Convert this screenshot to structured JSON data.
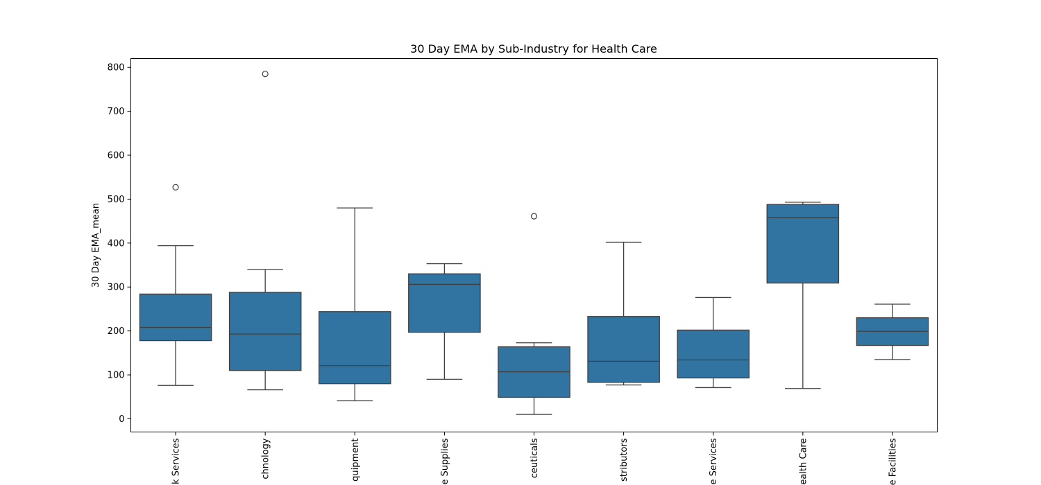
{
  "chart_data": {
    "type": "box",
    "title": "30 Day EMA by Sub-Industry for Health Care",
    "xlabel": "",
    "ylabel": "30 Day EMA_mean",
    "ylim": [
      -30,
      820
    ],
    "yticks": [
      0,
      100,
      200,
      300,
      400,
      500,
      600,
      700,
      800
    ],
    "grid": false,
    "box_color": "#3274a1",
    "categories": [
      "Health Care Services",
      "Health Care Technology",
      "Health Care Equipment",
      "Health Care Supplies",
      "Pharmaceuticals",
      "Health Care Distributors",
      "Managed Health Care Services",
      "Managed Health Care",
      "Health Care Facilities"
    ],
    "category_labels": [
      "k Services",
      "chnology",
      "quipment",
      "e Supplies",
      "ceuticals",
      "stributors",
      "e Services",
      "ealth Care",
      "e Facilities"
    ],
    "boxes": [
      {
        "whisker_low": 76,
        "q1": 178,
        "median": 208,
        "q3": 284,
        "whisker_high": 394,
        "outliers": [
          527
        ]
      },
      {
        "whisker_low": 66,
        "q1": 110,
        "median": 193,
        "q3": 288,
        "whisker_high": 340,
        "outliers": [
          785
        ]
      },
      {
        "whisker_low": 41,
        "q1": 80,
        "median": 121,
        "q3": 244,
        "whisker_high": 480,
        "outliers": []
      },
      {
        "whisker_low": 90,
        "q1": 197,
        "median": 306,
        "q3": 330,
        "whisker_high": 353,
        "outliers": []
      },
      {
        "whisker_low": 10,
        "q1": 49,
        "median": 107,
        "q3": 164,
        "whisker_high": 173,
        "outliers": [
          461
        ]
      },
      {
        "whisker_low": 77,
        "q1": 83,
        "median": 131,
        "q3": 233,
        "whisker_high": 402,
        "outliers": []
      },
      {
        "whisker_low": 71,
        "q1": 93,
        "median": 134,
        "q3": 202,
        "whisker_high": 276,
        "outliers": []
      },
      {
        "whisker_low": 69,
        "q1": 309,
        "median": 458,
        "q3": 488,
        "whisker_high": 493,
        "outliers": []
      },
      {
        "whisker_low": 135,
        "q1": 167,
        "median": 199,
        "q3": 230,
        "whisker_high": 261,
        "outliers": []
      }
    ]
  }
}
